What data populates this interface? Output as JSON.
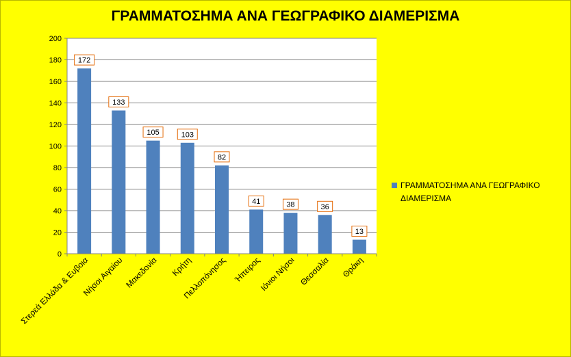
{
  "chart_data": {
    "type": "bar",
    "title": "ΓΡΑΜΜΑΤΟΣΗΜΑ ΑΝΑ ΓΕΩΓΡΑΦΙΚΟ ΔΙΑΜΕΡΙΣΜΑ",
    "categories": [
      "Στερεά Ελλάδα & Ευβοια",
      "Νήσοι Αιγαίου",
      "Μακεδονία",
      "Κρήτη",
      "Πελλοπόνησος",
      "Ήπειρος",
      "Ιόνιοι Νήσοι",
      "Θεσσαλία",
      "Θράκη"
    ],
    "series": [
      {
        "name": "ΓΡΑΜΜΑΤΟΣΗΜΑ ΑΝΑ ΓΕΩΓΡΑΦΙΚΟ ΔΙΑΜΕΡΙΣΜΑ",
        "values": [
          172,
          133,
          105,
          103,
          82,
          41,
          38,
          36,
          13
        ]
      }
    ],
    "xlabel": "",
    "ylabel": "",
    "ylim": [
      0,
      200
    ],
    "yticks": [
      0,
      20,
      40,
      60,
      80,
      100,
      120,
      140,
      160,
      180,
      200
    ],
    "grid": true,
    "legend_position": "right",
    "data_labels": true,
    "colors": {
      "background": "#ffff00",
      "plot_area": "#ffffff",
      "bar": "#4f81bd",
      "label_border": "#e46c0a",
      "gridline": "#808080"
    }
  }
}
